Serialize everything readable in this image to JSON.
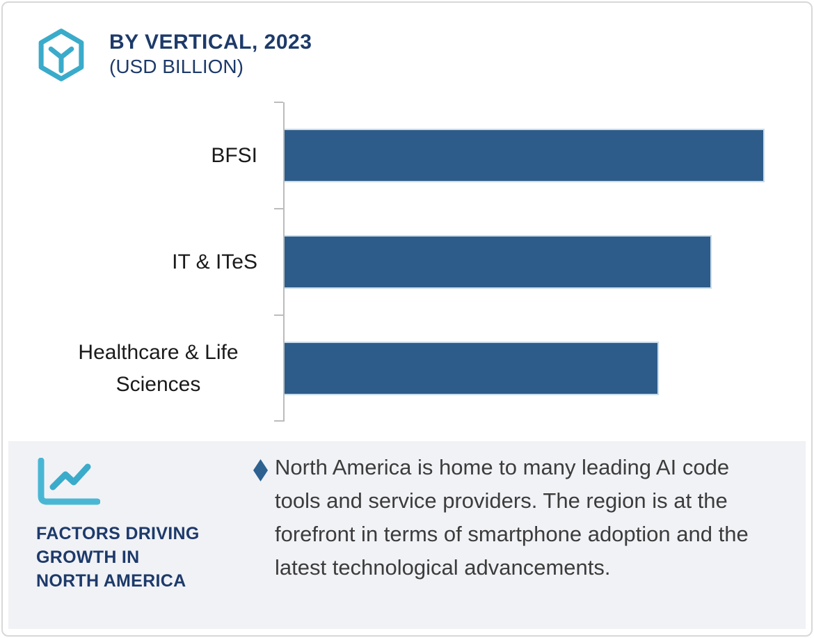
{
  "header": {
    "title": "BY VERTICAL, 2023",
    "subtitle": "(USD BILLION)"
  },
  "chart_data": {
    "type": "bar",
    "orientation": "horizontal",
    "title": "BY VERTICAL, 2023 (USD BILLION)",
    "categories": [
      "BFSI",
      "IT & ITeS",
      "Healthcare & Life Sciences"
    ],
    "values": [
      100,
      89,
      78
    ],
    "value_note": "no numeric axis or data labels shown; values are relative bar lengths (BFSI = 100)",
    "xlim": [
      0,
      110
    ],
    "xlabel": "",
    "ylabel": "",
    "grid": false,
    "legend": false,
    "bar_color": "#2d5c8a",
    "axis_color": "#bcbcbc"
  },
  "insights": {
    "heading": "FACTORS DRIVING GROWTH IN NORTH AMERICA",
    "heading_lines": [
      "FACTORS DRIVING",
      "GROWTH IN",
      "NORTH AMERICA"
    ],
    "bullets": [
      "North America is home to many leading AI code tools and service providers. The region is at the forefront in terms of smartphone adoption and the latest technological advancements."
    ]
  },
  "colors": {
    "accent_teal": "#3aabca",
    "navy": "#1d3a6a",
    "bar_blue": "#2d5c8a",
    "panel_bg": "#f1f2f6",
    "body_text": "#3c3c3c"
  }
}
